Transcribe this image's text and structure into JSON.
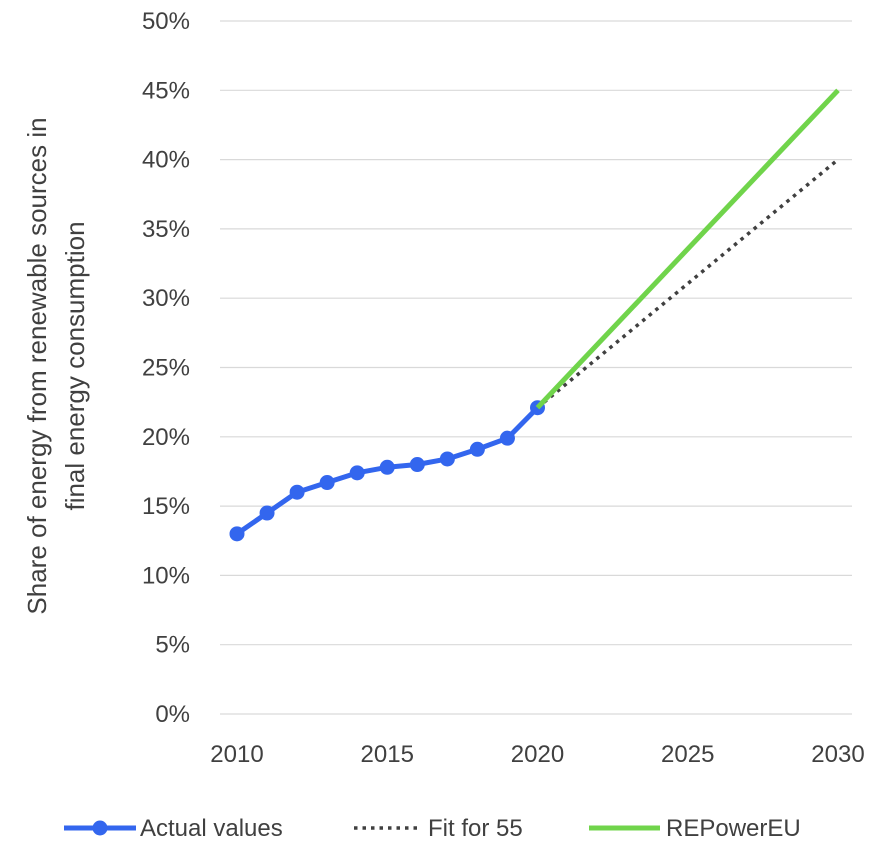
{
  "chart_data": {
    "type": "line",
    "title": "",
    "xlabel": "",
    "ylabel_lines": [
      "Share of  energy from renewable sources in",
      "final  energy consumption"
    ],
    "xlim": [
      2010,
      2030
    ],
    "ylim": [
      0,
      0.5
    ],
    "x_ticks": [
      2010,
      2015,
      2020,
      2025,
      2030
    ],
    "x_tick_labels": [
      "2010",
      "2015",
      "2020",
      "2025",
      "2030"
    ],
    "y_ticks": [
      0,
      0.05,
      0.1,
      0.15,
      0.2,
      0.25,
      0.3,
      0.35,
      0.4,
      0.45,
      0.5
    ],
    "y_tick_labels": [
      "0%",
      "5%",
      "10%",
      "15%",
      "20%",
      "25%",
      "30%",
      "35%",
      "40%",
      "45%",
      "50%"
    ],
    "grid": "horizontal",
    "legend_position": "bottom",
    "series": [
      {
        "name": "Actual values",
        "style": "solid-markers",
        "color": "#3366ee",
        "x": [
          2010,
          2011,
          2012,
          2013,
          2014,
          2015,
          2016,
          2017,
          2018,
          2019,
          2020
        ],
        "y": [
          0.13,
          0.145,
          0.16,
          0.167,
          0.174,
          0.178,
          0.18,
          0.184,
          0.191,
          0.199,
          0.221
        ]
      },
      {
        "name": "Fit for 55",
        "style": "dotted",
        "color": "#404040",
        "x": [
          2020,
          2030
        ],
        "y": [
          0.221,
          0.4
        ]
      },
      {
        "name": "REPowerEU",
        "style": "solid",
        "color": "#70d44b",
        "x": [
          2020,
          2030
        ],
        "y": [
          0.221,
          0.45
        ]
      }
    ]
  }
}
